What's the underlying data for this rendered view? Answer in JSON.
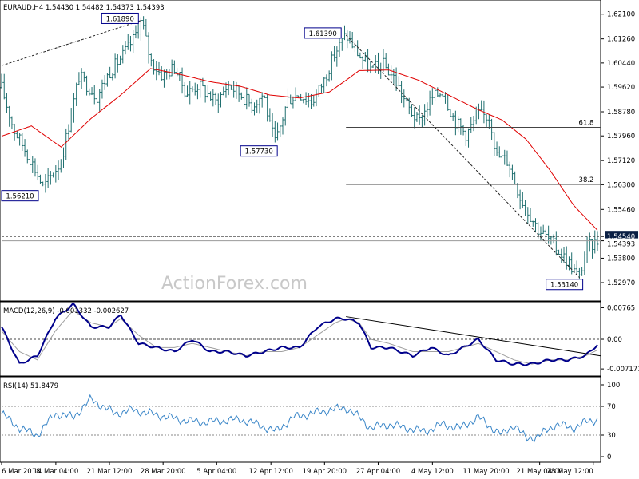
{
  "colors": {
    "bars": "#1f6f6f",
    "ma": "#e00000",
    "macd": "#00008b",
    "signal": "#a0a0a0",
    "rsi": "#3a86c8",
    "grid": "#b0b0b0",
    "label_border": "#00008b",
    "price_box": "#0a1f44"
  },
  "watermark": "ActionForex.com",
  "chart_data": [
    {
      "type": "line",
      "name": "price-panel",
      "title": "EURAUD,H4  1.54430 1.54482 1.54373 1.54393",
      "ylim": [
        1.524,
        1.625
      ],
      "y_ticks": [
        "1.62100",
        "1.61260",
        "1.60440",
        "1.59620",
        "1.58780",
        "1.57960",
        "1.57120",
        "1.56300",
        "1.55460",
        "1.54540",
        "1.54393",
        "1.53800",
        "1.52970"
      ],
      "y_tick_values": [
        1.621,
        1.6126,
        1.6044,
        1.5962,
        1.5878,
        1.5796,
        1.5712,
        1.563,
        1.5546,
        1.5454,
        1.54393,
        1.538,
        1.5297
      ],
      "x_labels": [
        "6 Mar 2018",
        "14 Mar 04:00",
        "21 Mar 12:00",
        "28 Mar 20:00",
        "5 Apr 04:00",
        "12 Apr 12:00",
        "19 Apr 20:00",
        "27 Apr 04:00",
        "4 May 12:00",
        "11 May 20:00",
        "21 May 04:00",
        "28 May 12:00"
      ],
      "x_label_pos": [
        0,
        0.091,
        0.181,
        0.271,
        0.361,
        0.452,
        0.542,
        0.632,
        0.723,
        0.813,
        0.903,
        0.993
      ],
      "price_anchors_x": [
        0,
        0.02,
        0.05,
        0.07,
        0.1,
        0.13,
        0.16,
        0.18,
        0.2,
        0.22,
        0.235,
        0.25,
        0.27,
        0.29,
        0.31,
        0.33,
        0.36,
        0.38,
        0.4,
        0.42,
        0.44,
        0.45,
        0.46,
        0.48,
        0.5,
        0.52,
        0.54,
        0.56,
        0.578,
        0.6,
        0.62,
        0.64,
        0.66,
        0.68,
        0.7,
        0.72,
        0.74,
        0.76,
        0.78,
        0.8,
        0.82,
        0.83,
        0.85,
        0.87,
        0.9,
        0.92,
        0.95,
        0.97,
        0.98,
        1.0
      ],
      "price_anchors_y": [
        1.596,
        1.582,
        1.571,
        1.562,
        1.571,
        1.6,
        1.593,
        1.601,
        1.606,
        1.612,
        1.619,
        1.605,
        1.6,
        1.603,
        1.594,
        1.597,
        1.591,
        1.597,
        1.594,
        1.59,
        1.594,
        1.583,
        1.577,
        1.592,
        1.594,
        1.591,
        1.598,
        1.608,
        1.614,
        1.607,
        1.602,
        1.604,
        1.599,
        1.59,
        1.584,
        1.592,
        1.595,
        1.585,
        1.58,
        1.587,
        1.586,
        1.573,
        1.571,
        1.559,
        1.548,
        1.544,
        1.537,
        1.531,
        1.541,
        1.5439
      ],
      "ma_anchors_x": [
        0,
        0.05,
        0.1,
        0.15,
        0.2,
        0.25,
        0.3,
        0.35,
        0.4,
        0.45,
        0.5,
        0.55,
        0.578,
        0.6,
        0.65,
        0.7,
        0.75,
        0.8,
        0.84,
        0.88,
        0.92,
        0.96,
        1.0
      ],
      "ma_anchors_y": [
        1.5795,
        1.583,
        1.5758,
        1.5855,
        1.5935,
        1.6025,
        1.6005,
        1.598,
        1.5965,
        1.5935,
        1.5925,
        1.5945,
        1.5985,
        1.6018,
        1.602,
        1.5985,
        1.5935,
        1.5885,
        1.585,
        1.5785,
        1.568,
        1.556,
        1.5475
      ],
      "levels": [
        {
          "name": "fib-61-8",
          "label": "61.8",
          "value": 1.5825,
          "x_from": 0.578
        },
        {
          "name": "fib-38-2",
          "label": "38.2",
          "value": 1.5631,
          "x_from": 0.578
        },
        {
          "name": "level-1-54540",
          "label": "1.54540",
          "value": 1.5454,
          "x_from": 0
        }
      ],
      "annotations": [
        {
          "name": "label-1-61890",
          "text": "1.61890",
          "x": 0.235,
          "y": 1.6189
        },
        {
          "name": "label-1-61390",
          "text": "1.61390",
          "x": 0.578,
          "y": 1.6139
        },
        {
          "name": "label-1-57730",
          "text": "1.57730",
          "x": 0.46,
          "y": 1.5773
        },
        {
          "name": "label-1-56210",
          "text": "1.56210",
          "x": 0.05,
          "y": 1.5621
        },
        {
          "name": "label-1-53140",
          "text": "1.53140",
          "x": 0.97,
          "y": 1.5314
        }
      ],
      "trendlines": [
        {
          "name": "trendline-rising",
          "x1": 0,
          "y1": 1.6035,
          "x2": 0.235,
          "y2": 1.6189
        },
        {
          "name": "trendline-falling",
          "x1": 0.578,
          "y1": 1.6139,
          "x2": 0.97,
          "y2": 1.5314
        }
      ],
      "current_price": "1.54393",
      "current_value": 1.54393
    },
    {
      "type": "line",
      "name": "macd-panel",
      "title": "MACD(12,26,9) -0.001332 -0.002627",
      "ylim": [
        -0.0085,
        0.0087
      ],
      "y_ticks": [
        "0.00765",
        "0.00",
        "-0.007171"
      ],
      "y_tick_values": [
        0.00765,
        0.0,
        -0.007171
      ],
      "macd_anchors_x": [
        0,
        0.03,
        0.06,
        0.09,
        0.12,
        0.15,
        0.18,
        0.2,
        0.23,
        0.26,
        0.29,
        0.32,
        0.35,
        0.38,
        0.41,
        0.44,
        0.47,
        0.5,
        0.53,
        0.56,
        0.578,
        0.6,
        0.62,
        0.65,
        0.69,
        0.72,
        0.75,
        0.8,
        0.83,
        0.86,
        0.89,
        0.92,
        0.95,
        0.98,
        1.0
      ],
      "macd_anchors_y": [
        0.003,
        -0.006,
        -0.004,
        0.005,
        0.0085,
        0.003,
        0.003,
        0.006,
        -0.001,
        -0.002,
        -0.003,
        0.0,
        -0.003,
        -0.003,
        -0.004,
        -0.003,
        -0.002,
        -0.002,
        0.003,
        0.005,
        0.005,
        0.004,
        -0.002,
        -0.002,
        -0.004,
        -0.002,
        -0.004,
        0.0,
        -0.005,
        -0.006,
        -0.006,
        -0.005,
        -0.005,
        -0.004,
        -0.0013
      ],
      "signal_anchors_x": [
        0,
        0.03,
        0.06,
        0.09,
        0.12,
        0.15,
        0.18,
        0.2,
        0.23,
        0.26,
        0.29,
        0.32,
        0.35,
        0.38,
        0.41,
        0.44,
        0.47,
        0.5,
        0.53,
        0.56,
        0.578,
        0.6,
        0.62,
        0.65,
        0.69,
        0.72,
        0.75,
        0.8,
        0.83,
        0.86,
        0.89,
        0.92,
        0.95,
        0.98,
        1.0
      ],
      "signal_anchors_y": [
        0.002,
        -0.003,
        -0.005,
        0.002,
        0.007,
        0.004,
        0.003,
        0.005,
        0.001,
        -0.002,
        -0.002,
        -0.001,
        -0.002,
        -0.003,
        -0.004,
        -0.003,
        -0.003,
        -0.002,
        0.001,
        0.004,
        0.005,
        0.004,
        0.0,
        -0.001,
        -0.003,
        -0.003,
        -0.003,
        -0.001,
        -0.003,
        -0.005,
        -0.006,
        -0.005,
        -0.005,
        -0.004,
        -0.0026
      ],
      "trendline": {
        "x1": 0.578,
        "y1": 0.0055,
        "x2": 1.0,
        "y2": -0.004
      }
    },
    {
      "type": "line",
      "name": "rsi-panel",
      "title": "RSI(14) 51.8479",
      "ylim": [
        0,
        100
      ],
      "y_ticks": [
        "100",
        "70",
        "30",
        "0"
      ],
      "y_tick_values": [
        100,
        70,
        30,
        0
      ],
      "rsi_anchors_x": [
        0,
        0.03,
        0.06,
        0.09,
        0.12,
        0.15,
        0.17,
        0.19,
        0.22,
        0.25,
        0.28,
        0.31,
        0.34,
        0.37,
        0.4,
        0.43,
        0.46,
        0.49,
        0.52,
        0.55,
        0.578,
        0.6,
        0.62,
        0.65,
        0.68,
        0.71,
        0.74,
        0.77,
        0.8,
        0.82,
        0.84,
        0.86,
        0.88,
        0.9,
        0.93,
        0.96,
        0.98,
        1.0
      ],
      "rsi_anchors_y": [
        60,
        40,
        30,
        60,
        55,
        80,
        70,
        60,
        65,
        60,
        55,
        50,
        48,
        50,
        52,
        45,
        35,
        55,
        60,
        65,
        68,
        55,
        40,
        45,
        40,
        35,
        45,
        40,
        55,
        42,
        30,
        45,
        25,
        28,
        45,
        40,
        48,
        52
      ]
    }
  ]
}
